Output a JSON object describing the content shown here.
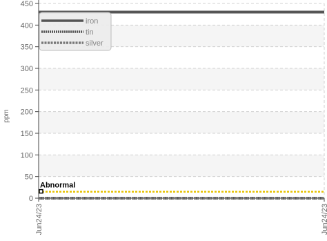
{
  "chart_data": {
    "type": "line",
    "ylabel": "ppm",
    "ylim": [
      0,
      450
    ],
    "yticks": [
      0,
      50,
      100,
      150,
      200,
      250,
      300,
      350,
      400,
      450
    ],
    "xticks": [
      "Jun24/23",
      "Jun24/23"
    ],
    "grid": true,
    "legend_position": "top-left",
    "series": [
      {
        "name": "iron",
        "color": "#555555",
        "style": "solid",
        "values": [
          430,
          430
        ]
      },
      {
        "name": "tin",
        "color": "#555555",
        "style": "dotted",
        "values": [
          0,
          0
        ]
      },
      {
        "name": "silver",
        "color": "#777777",
        "style": "dashed",
        "values": [
          0,
          0
        ]
      }
    ],
    "threshold": {
      "label": "Abnormal",
      "value": 15,
      "color": "#e5c100"
    }
  }
}
